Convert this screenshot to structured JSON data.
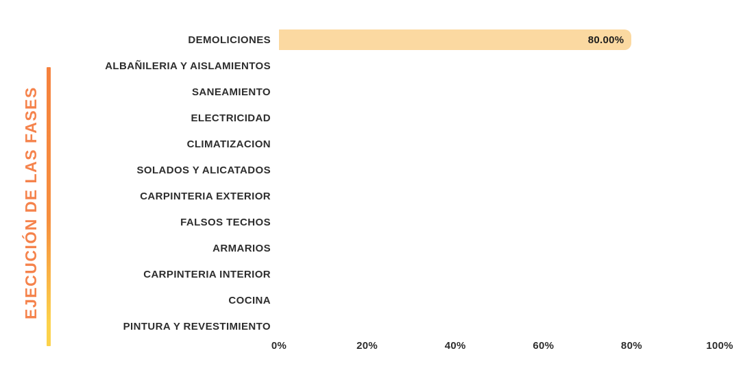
{
  "chart_data": {
    "type": "bar",
    "orientation": "horizontal",
    "title": "EJECUCIÓN DE LAS FASES",
    "xlabel": "",
    "ylabel": "EJECUCIÓN DE LAS FASES",
    "categories": [
      "DEMOLICIONES",
      "ALBAÑILERIA Y AISLAMIENTOS",
      "SANEAMIENTO",
      "ELECTRICIDAD",
      "CLIMATIZACION",
      "SOLADOS Y ALICATADOS",
      "CARPINTERIA EXTERIOR",
      "FALSOS TECHOS",
      "ARMARIOS",
      "CARPINTERIA INTERIOR",
      "COCINA",
      "PINTURA Y REVESTIMIENTO"
    ],
    "values": [
      80,
      0,
      0,
      0,
      0,
      0,
      0,
      0,
      0,
      0,
      0,
      0
    ],
    "value_labels": [
      "80.00%",
      "",
      "",
      "",
      "",
      "",
      "",
      "",
      "",
      "",
      "",
      ""
    ],
    "xlim": [
      0,
      100
    ],
    "x_ticks": [
      "0%",
      "20%",
      "40%",
      "60%",
      "80%",
      "100%"
    ],
    "grid": false,
    "legend": false,
    "colors": {
      "bar": "#fbd9a1",
      "title": "#f5834c",
      "accent_line_top": "#f5813d",
      "accent_line_mid": "#f68f3e",
      "accent_line_bottom": "#fcd24b",
      "category_text": "#2d2d2d",
      "value_text": "#1d1d1d"
    }
  }
}
